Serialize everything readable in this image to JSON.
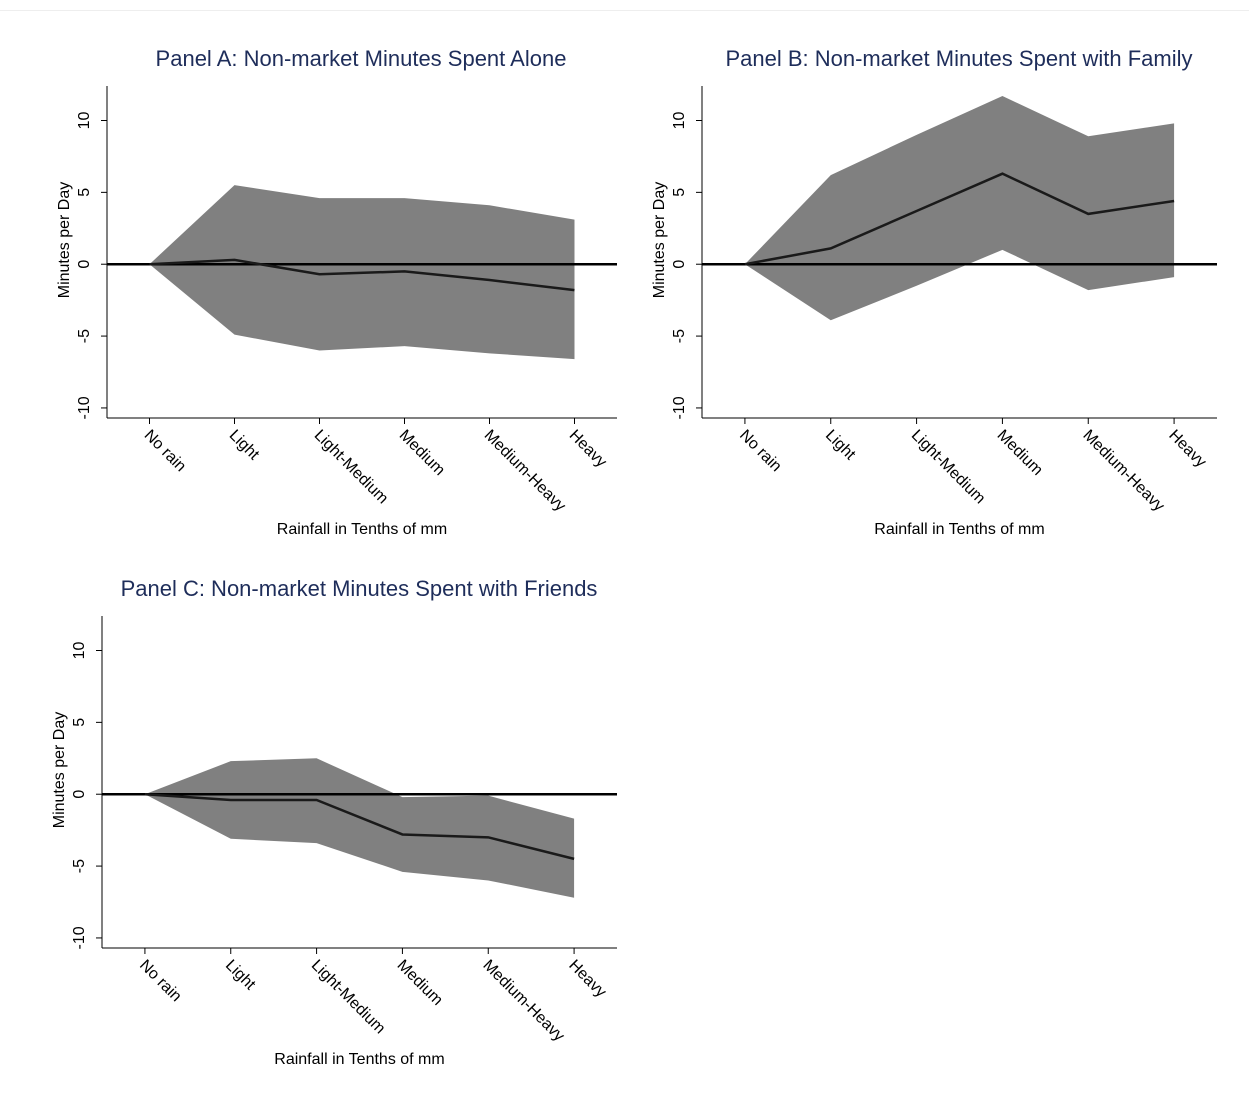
{
  "chart_data": [
    {
      "type": "line",
      "title": "Panel A: Non-market Minutes Spent Alone",
      "x_label": "Rainfall in Tenths of mm",
      "y_label": "Minutes per Day",
      "categories": [
        "No rain",
        "Light",
        "Light-Medium",
        "Medium",
        "Medium-Heavy",
        "Heavy"
      ],
      "series": [
        {
          "color": "#1a1a1a",
          "values": [
            0,
            0.3,
            -0.7,
            -0.5,
            -1.1,
            -1.8
          ]
        }
      ],
      "band": {
        "color": "#808080",
        "upper": [
          0,
          5.5,
          4.6,
          4.6,
          4.1,
          3.1
        ],
        "lower": [
          0,
          -4.9,
          -6.0,
          -5.7,
          -6.2,
          -6.6
        ]
      },
      "refline": 0,
      "ylim": [
        -10.7,
        12.4
      ],
      "yticks": [
        -10,
        -5,
        0,
        5,
        10
      ]
    },
    {
      "type": "line",
      "title": "Panel B: Non-market Minutes Spent with Family",
      "x_label": "Rainfall in Tenths of mm",
      "y_label": "Minutes per Day",
      "categories": [
        "No rain",
        "Light",
        "Light-Medium",
        "Medium",
        "Medium-Heavy",
        "Heavy"
      ],
      "series": [
        {
          "color": "#1a1a1a",
          "values": [
            0,
            1.1,
            3.7,
            6.3,
            3.5,
            4.4
          ]
        }
      ],
      "band": {
        "color": "#808080",
        "upper": [
          0,
          6.2,
          9.0,
          11.7,
          8.9,
          9.8
        ],
        "lower": [
          0,
          -3.9,
          -1.5,
          1.0,
          -1.8,
          -0.9
        ]
      },
      "refline": 0,
      "ylim": [
        -10.7,
        12.4
      ],
      "yticks": [
        -10,
        -5,
        0,
        5,
        10
      ]
    },
    {
      "type": "line",
      "title": "Panel C: Non-market Minutes Spent with Friends",
      "x_label": "Rainfall in Tenths of mm",
      "y_label": "Minutes per Day",
      "categories": [
        "No rain",
        "Light",
        "Light-Medium",
        "Medium",
        "Medium-Heavy",
        "Heavy"
      ],
      "series": [
        {
          "color": "#1a1a1a",
          "values": [
            0,
            -0.4,
            -0.4,
            -2.8,
            -3.0,
            -4.5
          ]
        }
      ],
      "band": {
        "color": "#808080",
        "upper": [
          0,
          2.3,
          2.5,
          -0.2,
          -0.1,
          -1.7
        ],
        "lower": [
          0,
          -3.1,
          -3.4,
          -5.4,
          -6.0,
          -7.2
        ]
      },
      "refline": 0,
      "ylim": [
        -10.7,
        12.4
      ],
      "yticks": [
        -10,
        -5,
        0,
        5,
        10
      ]
    }
  ]
}
